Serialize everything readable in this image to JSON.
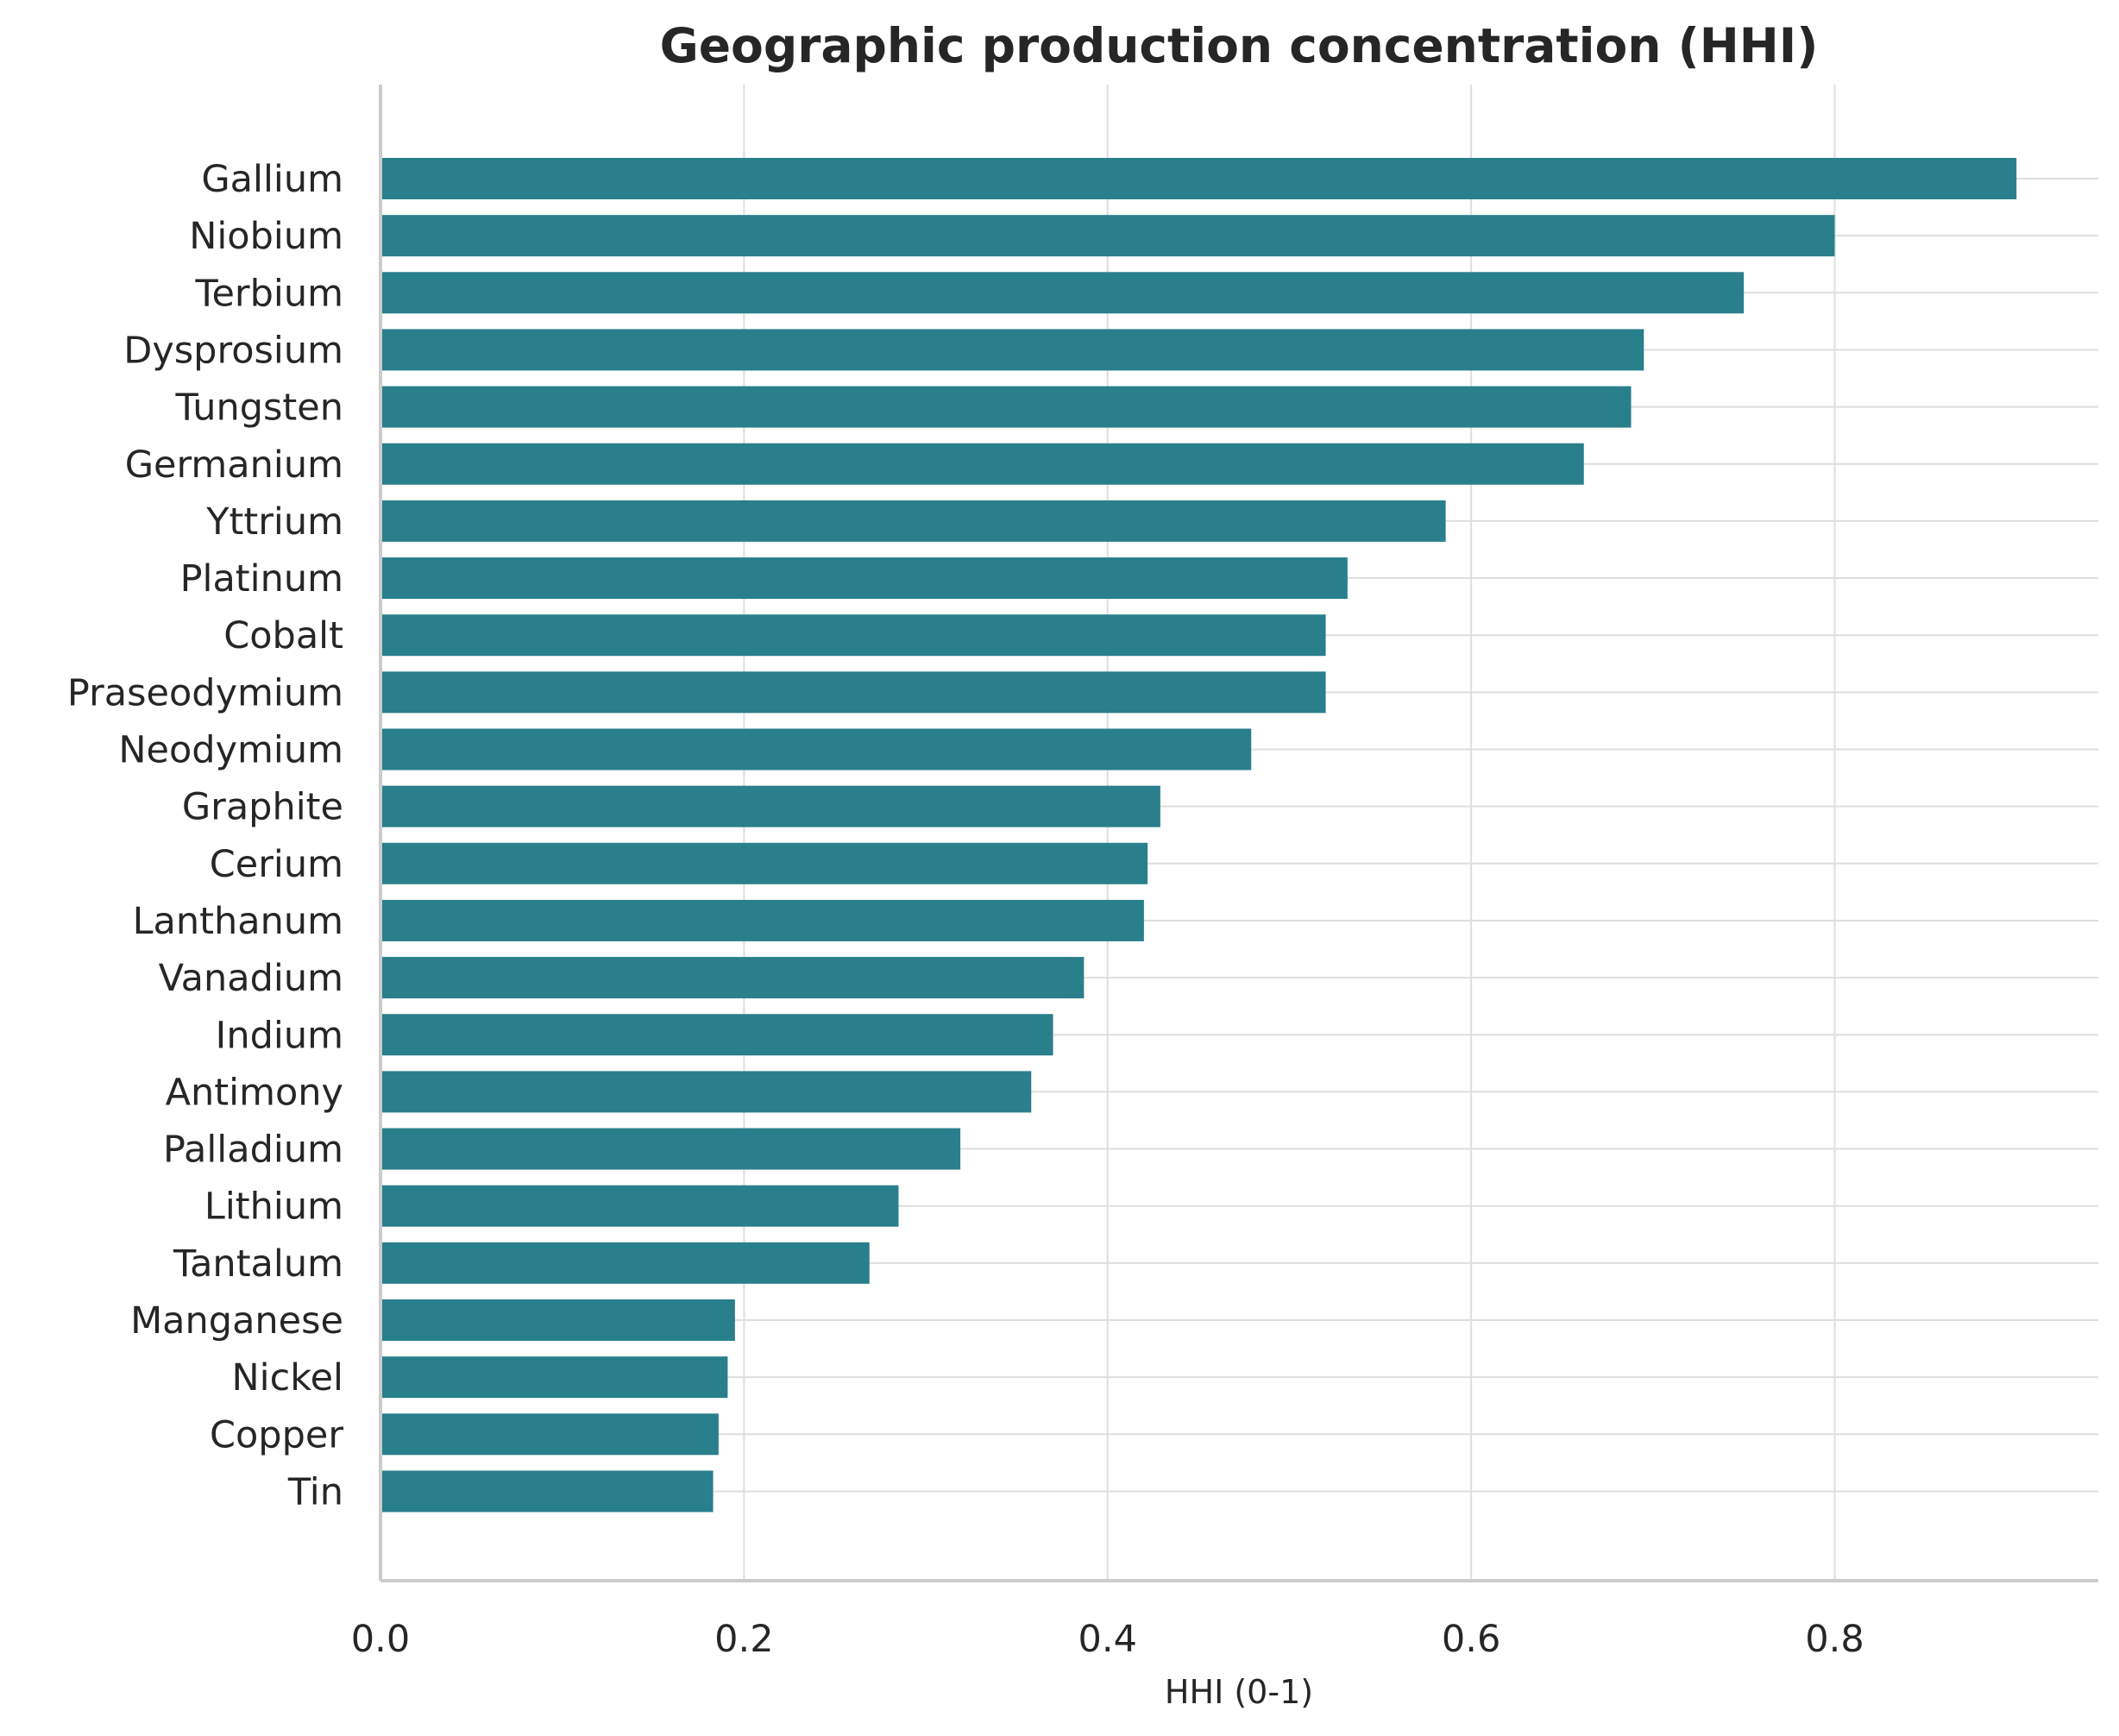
{
  "chart_data": {
    "type": "bar",
    "orientation": "horizontal",
    "title": "Geographic production concentration (HHI)",
    "xlabel": "HHI (0-1)",
    "ylabel": "",
    "xlim": [
      0,
      0.945
    ],
    "xticks": [
      0.0,
      0.2,
      0.4,
      0.6,
      0.8
    ],
    "xtick_labels": [
      "0.0",
      "0.2",
      "0.4",
      "0.6",
      "0.8"
    ],
    "grid": true,
    "bar_color": "#2a7f8c",
    "grid_color": "#dedede",
    "spine_color": "#cccccc",
    "categories": [
      "Gallium",
      "Niobium",
      "Terbium",
      "Dysprosium",
      "Tungsten",
      "Germanium",
      "Yttrium",
      "Platinum",
      "Cobalt",
      "Praseodymium",
      "Neodymium",
      "Graphite",
      "Cerium",
      "Lanthanum",
      "Vanadium",
      "Indium",
      "Antimony",
      "Palladium",
      "Lithium",
      "Tantalum",
      "Manganese",
      "Nickel",
      "Copper",
      "Tin"
    ],
    "values": [
      0.9,
      0.8,
      0.75,
      0.695,
      0.688,
      0.662,
      0.586,
      0.532,
      0.52,
      0.52,
      0.479,
      0.429,
      0.422,
      0.42,
      0.387,
      0.37,
      0.358,
      0.319,
      0.285,
      0.269,
      0.195,
      0.191,
      0.186,
      0.183
    ]
  }
}
